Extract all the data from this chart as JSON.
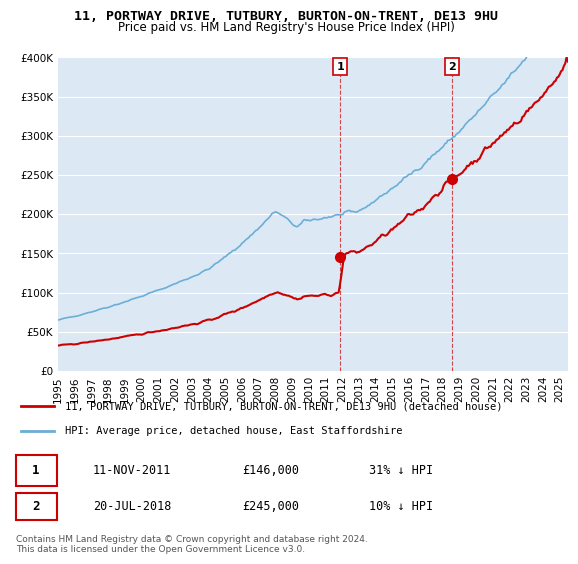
{
  "title1": "11, PORTWAY DRIVE, TUTBURY, BURTON-ON-TRENT, DE13 9HU",
  "title2": "Price paid vs. HM Land Registry's House Price Index (HPI)",
  "ylim": [
    0,
    400000
  ],
  "xlim_start": 1995.0,
  "xlim_end": 2025.5,
  "hpi_color": "#6baed6",
  "price_color": "#cc0000",
  "marker_color": "#cc0000",
  "sale1_x": 2011.87,
  "sale1_y": 146000,
  "sale2_x": 2018.55,
  "sale2_y": 245000,
  "label1_num": "1",
  "label2_num": "2",
  "legend_line1": "11, PORTWAY DRIVE, TUTBURY, BURTON-ON-TRENT, DE13 9HU (detached house)",
  "legend_line2": "HPI: Average price, detached house, East Staffordshire",
  "table_row1_num": "1",
  "table_row1_date": "11-NOV-2011",
  "table_row1_price": "£146,000",
  "table_row1_hpi": "31% ↓ HPI",
  "table_row2_num": "2",
  "table_row2_date": "20-JUL-2018",
  "table_row2_price": "£245,000",
  "table_row2_hpi": "10% ↓ HPI",
  "footnote": "Contains HM Land Registry data © Crown copyright and database right 2024.\nThis data is licensed under the Open Government Licence v3.0.",
  "plot_bg_color": "#dce9f5",
  "fig_bg_color": "#ffffff",
  "grid_color": "#ffffff",
  "xtick_years": [
    1995,
    1996,
    1997,
    1998,
    1999,
    2000,
    2001,
    2002,
    2003,
    2004,
    2005,
    2006,
    2007,
    2008,
    2009,
    2010,
    2011,
    2012,
    2013,
    2014,
    2015,
    2016,
    2017,
    2018,
    2019,
    2020,
    2021,
    2022,
    2023,
    2024,
    2025
  ]
}
